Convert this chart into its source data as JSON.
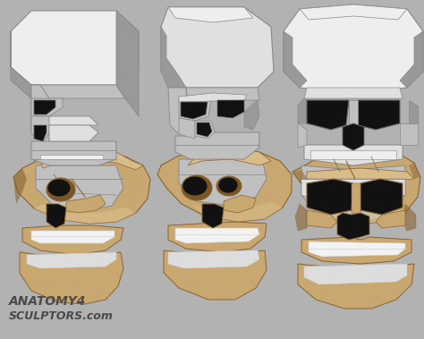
{
  "background_color": "#b2b2b2",
  "watermark_line1": "ANATOMY4",
  "watermark_line2": "SCULPTORS.com",
  "watermark_color": "#4a4a4a",
  "watermark_fontsize": 10,
  "figsize": [
    4.74,
    3.79
  ],
  "dpi": 100,
  "top_skull_base": "#c0c0c0",
  "top_skull_light": "#e0e0e0",
  "top_skull_lighter": "#eeeeee",
  "top_skull_dark": "#888888",
  "top_skull_darker": "#666666",
  "top_skull_shadow": "#999999",
  "eye_dark": "#111111",
  "nose_dark": "#222222",
  "bottom_skull_base": "#c8a870",
  "bottom_skull_light": "#d8bc8a",
  "bottom_skull_dark": "#8a6230",
  "bottom_skull_shadow": "#7a5525",
  "teeth_color": "#f2f2f2",
  "teeth_dark": "#dddddd"
}
